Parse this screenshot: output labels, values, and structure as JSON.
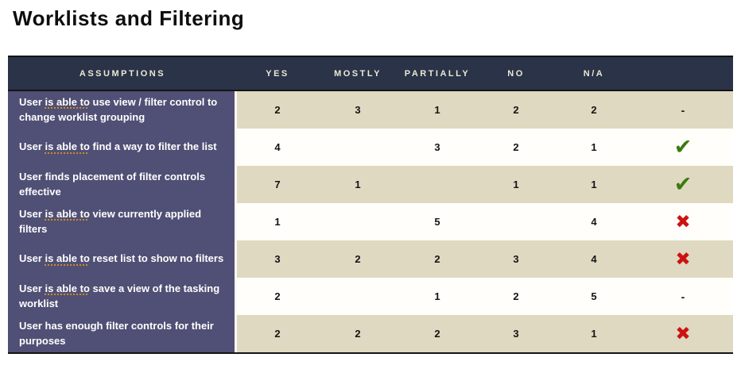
{
  "page": {
    "title": "Worklists and Filtering"
  },
  "colors": {
    "header_bg": "#2a3347",
    "header_text": "#ece7d6",
    "assumption_column_bg": "#504f75",
    "row_beige": "#ded9c0",
    "row_white": "#fffefa",
    "check_green": "#3b7a10",
    "cross_red": "#cc1212",
    "squiggle_orange": "#d18a20",
    "border_black": "#141414"
  },
  "table": {
    "columns": [
      "ASSUMPTIONS",
      "YES",
      "MOSTLY",
      "PARTIALLY",
      "NO",
      "N/A",
      ""
    ],
    "result_glyphs": {
      "check": "✔",
      "cross": "✖",
      "dash": "-"
    },
    "rows": [
      {
        "assumption_prefix": "User ",
        "assumption_flagged": "is able to",
        "assumption_suffix": " use view / filter control to change worklist grouping",
        "yes": "2",
        "mostly": "3",
        "partially": "1",
        "no": "2",
        "na": "2",
        "result": "dash"
      },
      {
        "assumption_prefix": "User ",
        "assumption_flagged": "is able to",
        "assumption_suffix": " find a way to filter the list",
        "yes": "4",
        "mostly": "",
        "partially": "3",
        "no": "2",
        "na": "1",
        "result": "check"
      },
      {
        "assumption_prefix": "",
        "assumption_flagged": "",
        "assumption_suffix": "User finds placement of filter controls effective",
        "yes": "7",
        "mostly": "1",
        "partially": "",
        "no": "1",
        "na": "1",
        "result": "check"
      },
      {
        "assumption_prefix": "User ",
        "assumption_flagged": "is able to",
        "assumption_suffix": " view currently applied filters",
        "yes": "1",
        "mostly": "",
        "partially": "5",
        "no": "",
        "na": "4",
        "result": "cross"
      },
      {
        "assumption_prefix": "User ",
        "assumption_flagged": "is able to",
        "assumption_suffix": " reset list to show no filters",
        "yes": "3",
        "mostly": "2",
        "partially": "2",
        "no": "3",
        "na": "4",
        "result": "cross"
      },
      {
        "assumption_prefix": "User ",
        "assumption_flagged": "is able to",
        "assumption_suffix": " save a view of the tasking worklist",
        "yes": "2",
        "mostly": "",
        "partially": "1",
        "no": "2",
        "na": "5",
        "result": "dash"
      },
      {
        "assumption_prefix": "",
        "assumption_flagged": "",
        "assumption_suffix": "User has enough filter controls for their purposes",
        "yes": "2",
        "mostly": "2",
        "partially": "2",
        "no": "3",
        "na": "1",
        "result": "cross"
      }
    ]
  }
}
